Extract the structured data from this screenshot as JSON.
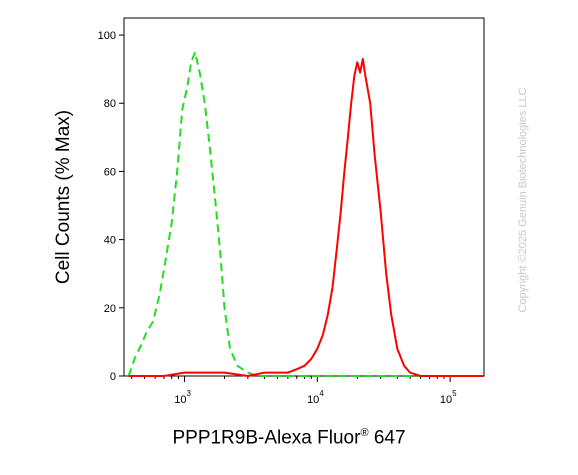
{
  "chart_data": {
    "type": "line",
    "xscale": "log",
    "xlabel_main": "PPP1R9B-Alexa Fluor",
    "xlabel_sup": "®",
    "xlabel_tail": " 647",
    "ylabel": "Cell Counts (% Max)",
    "xlim": [
      350,
      180000
    ],
    "ylim": [
      0,
      105
    ],
    "y_ticks": [
      0,
      20,
      40,
      60,
      80,
      100
    ],
    "x_ticks": [
      {
        "value": 1000,
        "base": "10",
        "exp": "3"
      },
      {
        "value": 10000,
        "base": "10",
        "exp": "4"
      },
      {
        "value": 100000,
        "base": "10",
        "exp": "5"
      }
    ],
    "series": [
      {
        "color": "#22dd22",
        "style": "dashed",
        "x": [
          380,
          420,
          470,
          520,
          580,
          650,
          720,
          800,
          880,
          960,
          1050,
          1120,
          1200,
          1300,
          1420,
          1550,
          1700,
          1850,
          2000,
          2200,
          2500,
          3000,
          3500,
          5000,
          10000,
          30000,
          100000,
          180000
        ],
        "y": [
          0,
          5,
          9,
          13,
          16,
          24,
          34,
          45,
          60,
          78,
          85,
          92,
          95,
          89,
          80,
          67,
          52,
          37,
          20,
          8,
          3,
          1,
          0,
          0,
          0,
          0,
          0,
          0
        ]
      },
      {
        "color": "#ff0000",
        "style": "solid",
        "x": [
          380,
          500,
          700,
          1000,
          2000,
          3000,
          4000,
          5000,
          6000,
          7000,
          8000,
          9000,
          10000,
          11000,
          12000,
          13000,
          14000,
          15000,
          16000,
          17000,
          18000,
          19000,
          20000,
          21000,
          22000,
          23000,
          25000,
          27000,
          30000,
          33000,
          36000,
          40000,
          45000,
          50000,
          60000,
          80000,
          120000,
          180000
        ],
        "y": [
          0,
          0,
          0,
          1,
          1,
          0,
          1,
          1,
          1,
          2,
          3,
          5,
          8,
          12,
          18,
          26,
          37,
          48,
          60,
          70,
          80,
          88,
          92,
          89,
          93,
          88,
          80,
          65,
          48,
          30,
          18,
          8,
          3,
          1,
          0,
          0,
          0,
          0
        ]
      }
    ]
  },
  "watermark": "Copyright ©2025 Genuin Biotechnologies LLC"
}
